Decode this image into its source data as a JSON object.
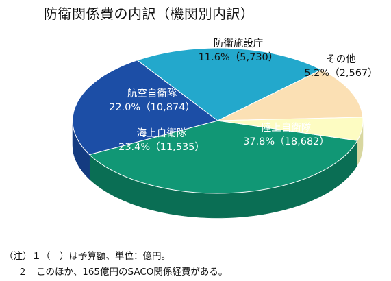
{
  "title": "防衛関係費の内訳（機関別内訳）",
  "chart_data": {
    "type": "pie",
    "unit": "億円",
    "slices": [
      {
        "name": "陸上自衛隊",
        "percent": 37.8,
        "value": 18682,
        "pct_label": "37.8%（18,682）",
        "color": "#119775",
        "side": "#0a6e54"
      },
      {
        "name": "海上自衛隊",
        "percent": 23.4,
        "value": 11535,
        "pct_label": "23.4%（11,535）",
        "color": "#1c4ea6",
        "side": "#143b80"
      },
      {
        "name": "航空自衛隊",
        "percent": 22.0,
        "value": 10874,
        "pct_label": "22.0%（10,874）",
        "color": "#23a8cc",
        "side": "#1a86a3"
      },
      {
        "name": "防衛施設庁",
        "percent": 11.6,
        "value": 5730,
        "pct_label": "11.6%（5,730）",
        "color": "#fbe0b4",
        "side": "#d9bd93"
      },
      {
        "name": "その他",
        "percent": 5.2,
        "value": 2567,
        "pct_label": "5.2%（2,567）",
        "color": "#fdfcc2",
        "side": "#d8d7a0"
      }
    ]
  },
  "notes": [
    "（注）１（　）は予算額、単位：億円。",
    "２　このほか、165億円のSACO関係経費がある。"
  ]
}
